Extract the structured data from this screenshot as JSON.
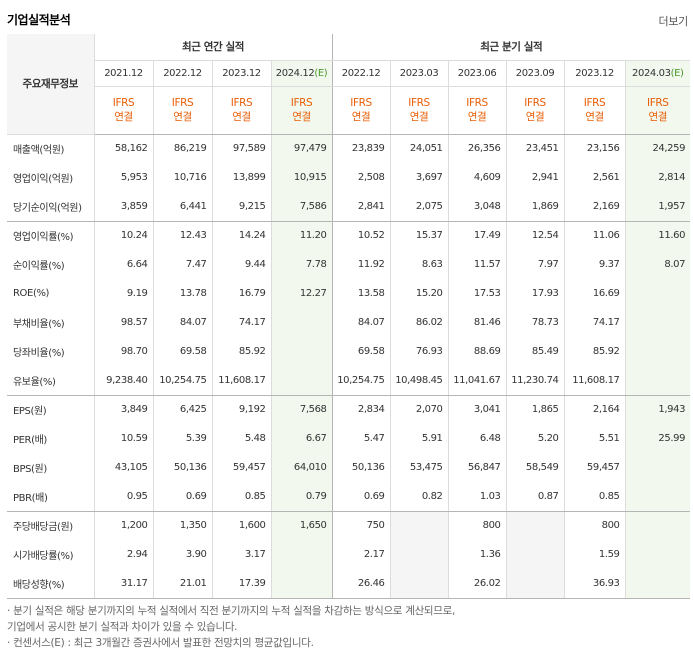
{
  "title": "기업실적분석",
  "more_link": "더보기",
  "table": {
    "row_header_label": "주요재무정보",
    "group_annual": "최근 연간 실적",
    "group_quarterly": "최근 분기 실적",
    "periods": [
      "2021.12",
      "2022.12",
      "2023.12",
      "2024.12(E)",
      "2022.12",
      "2023.03",
      "2023.06",
      "2023.09",
      "2023.12",
      "2024.03(E)"
    ],
    "basis_line1": "IFRS",
    "basis_line2": "연결",
    "rows": [
      {
        "label": "매출액(억원)",
        "values": [
          "58,162",
          "86,219",
          "97,589",
          "97,479",
          "23,839",
          "24,051",
          "26,356",
          "23,451",
          "23,156",
          "24,259"
        ]
      },
      {
        "label": "영업이익(억원)",
        "values": [
          "5,953",
          "10,716",
          "13,899",
          "10,915",
          "2,508",
          "3,697",
          "4,609",
          "2,941",
          "2,561",
          "2,814"
        ]
      },
      {
        "label": "당기순이익(억원)",
        "values": [
          "3,859",
          "6,441",
          "9,215",
          "7,586",
          "2,841",
          "2,075",
          "3,048",
          "1,869",
          "2,169",
          "1,957"
        ]
      },
      {
        "label": "영업이익률(%)",
        "values": [
          "10.24",
          "12.43",
          "14.24",
          "11.20",
          "10.52",
          "15.37",
          "17.49",
          "12.54",
          "11.06",
          "11.60"
        ]
      },
      {
        "label": "순이익률(%)",
        "values": [
          "6.64",
          "7.47",
          "9.44",
          "7.78",
          "11.92",
          "8.63",
          "11.57",
          "7.97",
          "9.37",
          "8.07"
        ]
      },
      {
        "label": "ROE(%)",
        "values": [
          "9.19",
          "13.78",
          "16.79",
          "12.27",
          "13.58",
          "15.20",
          "17.53",
          "17.93",
          "16.69",
          ""
        ]
      },
      {
        "label": "부채비율(%)",
        "values": [
          "98.57",
          "84.07",
          "74.17",
          "",
          "84.07",
          "86.02",
          "81.46",
          "78.73",
          "74.17",
          ""
        ]
      },
      {
        "label": "당좌비율(%)",
        "values": [
          "98.70",
          "69.58",
          "85.92",
          "",
          "69.58",
          "76.93",
          "88.69",
          "85.49",
          "85.92",
          ""
        ]
      },
      {
        "label": "유보율(%)",
        "values": [
          "9,238.40",
          "10,254.75",
          "11,608.17",
          "",
          "10,254.75",
          "10,498.45",
          "11,041.67",
          "11,230.74",
          "11,608.17",
          ""
        ]
      },
      {
        "label": "EPS(원)",
        "values": [
          "3,849",
          "6,425",
          "9,192",
          "7,568",
          "2,834",
          "2,070",
          "3,041",
          "1,865",
          "2,164",
          "1,943"
        ]
      },
      {
        "label": "PER(배)",
        "values": [
          "10.59",
          "5.39",
          "5.48",
          "6.67",
          "5.47",
          "5.91",
          "6.48",
          "5.20",
          "5.51",
          "25.99"
        ]
      },
      {
        "label": "BPS(원)",
        "values": [
          "43,105",
          "50,136",
          "59,457",
          "64,010",
          "50,136",
          "53,475",
          "56,847",
          "58,549",
          "59,457",
          ""
        ]
      },
      {
        "label": "PBR(배)",
        "values": [
          "0.95",
          "0.69",
          "0.85",
          "0.79",
          "0.69",
          "0.82",
          "1.03",
          "0.87",
          "0.85",
          ""
        ]
      },
      {
        "label": "주당배당금(원)",
        "values": [
          "1,200",
          "1,350",
          "1,600",
          "1,650",
          "750",
          "",
          "800",
          "",
          "800",
          ""
        ]
      },
      {
        "label": "시가배당률(%)",
        "values": [
          "2.94",
          "3.90",
          "3.17",
          "",
          "2.17",
          "",
          "1.36",
          "",
          "1.59",
          ""
        ]
      },
      {
        "label": "배당성향(%)",
        "values": [
          "31.17",
          "21.01",
          "17.39",
          "",
          "26.46",
          "",
          "26.02",
          "",
          "36.93",
          ""
        ]
      }
    ]
  },
  "notes": {
    "line1": "· 분기 실적은 해당 분기까지의 누적 실적에서 직전 분기까지의 누적 실적을 차감하는 방식으로 계산되므로,",
    "line2": "  기업에서 공시한 분기 실적과 차이가 있을 수 있습니다.",
    "line3": "· 컨센서스(E) : 최근 3개월간 증권사에서 발표한 전망치의 평균값입니다."
  },
  "colors": {
    "accent_orange": "#e85d05",
    "estimate_bg": "#f2f8ee",
    "empty_bg": "#f5f5f5"
  }
}
